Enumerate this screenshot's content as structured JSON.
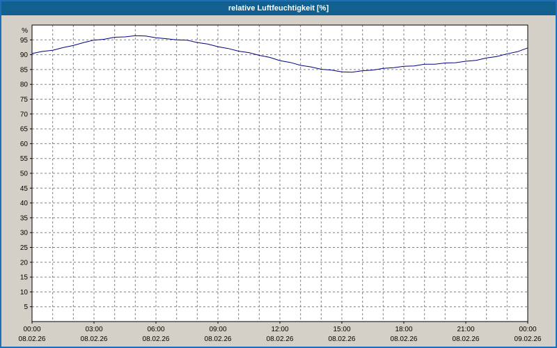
{
  "window": {
    "title": "relative Luftfeuchtigkeit [%]"
  },
  "colors": {
    "titlebar_bg": "#11608f",
    "titlebar_text": "#ffffff",
    "border": "#1d6fb8",
    "frame_bg": "#d4d0c8",
    "plot_bg": "#ffffff",
    "plot_border": "#000000",
    "grid": "#808080",
    "line": "#000080",
    "axis_text": "#000000"
  },
  "chart_data": {
    "type": "line",
    "title": "relative Luftfeuchtigkeit [%]",
    "ylabel": "%",
    "ylim": [
      0,
      100
    ],
    "xlim": [
      0,
      24
    ],
    "grid": true,
    "legend": "none",
    "yticks": [
      5,
      10,
      15,
      20,
      25,
      30,
      35,
      40,
      45,
      50,
      55,
      60,
      65,
      70,
      75,
      80,
      85,
      90,
      95
    ],
    "xticks": [
      {
        "hour": 0,
        "time": "00:00",
        "date": "08.02.26"
      },
      {
        "hour": 3,
        "time": "03:00",
        "date": "08.02.26"
      },
      {
        "hour": 6,
        "time": "06:00",
        "date": "08.02.26"
      },
      {
        "hour": 9,
        "time": "09:00",
        "date": "08.02.26"
      },
      {
        "hour": 12,
        "time": "12:00",
        "date": "08.02.26"
      },
      {
        "hour": 15,
        "time": "15:00",
        "date": "08.02.26"
      },
      {
        "hour": 18,
        "time": "18:00",
        "date": "08.02.26"
      },
      {
        "hour": 21,
        "time": "21:00",
        "date": "08.02.26"
      },
      {
        "hour": 24,
        "time": "00:00",
        "date": "09.02.26"
      }
    ],
    "x": [
      0,
      0.5,
      1,
      1.5,
      2,
      2.5,
      3,
      3.5,
      4,
      4.5,
      5,
      5.5,
      6,
      6.5,
      7,
      7.5,
      8,
      8.5,
      9,
      9.5,
      10,
      10.5,
      11,
      11.5,
      12,
      12.5,
      13,
      13.5,
      14,
      14.5,
      15,
      15.5,
      16,
      16.5,
      17,
      17.5,
      18,
      18.5,
      19,
      19.5,
      20,
      20.5,
      21,
      21.5,
      22,
      22.5,
      23,
      23.5,
      24
    ],
    "series": [
      {
        "name": "relative Luftfeuchtigkeit",
        "values": [
          90.4,
          91.1,
          91.5,
          92.4,
          93.1,
          94.1,
          94.9,
          95.2,
          95.9,
          96.0,
          96.4,
          96.3,
          95.7,
          95.4,
          95.0,
          94.9,
          94.1,
          93.6,
          92.7,
          92.1,
          91.2,
          90.7,
          89.8,
          89.1,
          88.0,
          87.4,
          86.4,
          85.9,
          85.1,
          84.8,
          84.2,
          84.1,
          84.6,
          84.8,
          85.4,
          85.6,
          86.1,
          86.2,
          86.8,
          86.8,
          87.2,
          87.3,
          87.8,
          88.1,
          88.9,
          89.4,
          90.3,
          91.0,
          92.3
        ]
      }
    ]
  }
}
